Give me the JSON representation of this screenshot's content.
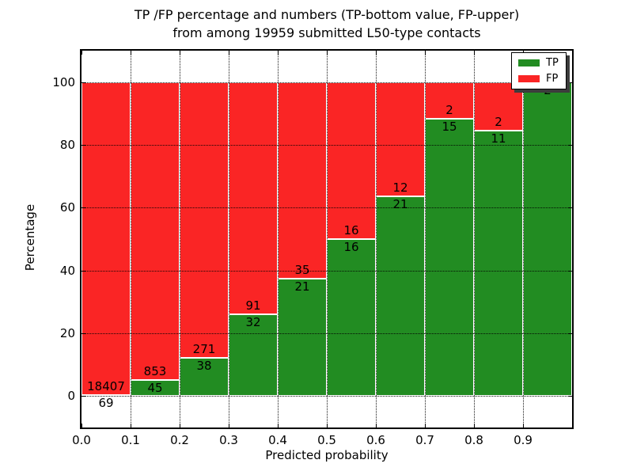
{
  "title": {
    "line1": "TP /FP percentage and numbers (TP-bottom value, FP-upper)",
    "line2": "from among 19959 submitted L50-type contacts"
  },
  "legend": {
    "items": [
      {
        "label": "TP",
        "color": "#228c22"
      },
      {
        "label": "FP",
        "color": "#fa2525"
      }
    ]
  },
  "chart_data": {
    "type": "bar",
    "stacked": true,
    "normalized": "each bin scaled to 100%",
    "title": "TP /FP percentage and numbers (TP-bottom value, FP-upper) from among 19959 submitted L50-type contacts",
    "xlabel": "Predicted probability",
    "ylabel": "Percentage",
    "xlim": [
      0,
      1.0
    ],
    "ylim": [
      -10,
      110
    ],
    "grid": true,
    "legend_position": "upper right",
    "categories": [
      "0.0-0.1",
      "0.1-0.2",
      "0.2-0.3",
      "0.3-0.4",
      "0.4-0.5",
      "0.5-0.6",
      "0.6-0.7",
      "0.7-0.8",
      "0.8-0.9",
      "0.9-1.0"
    ],
    "bin_left_edges": [
      0.0,
      0.1,
      0.2,
      0.3,
      0.4,
      0.5,
      0.6,
      0.7,
      0.8,
      0.9
    ],
    "xticks": [
      "0.0",
      "0.1",
      "0.2",
      "0.3",
      "0.4",
      "0.5",
      "0.6",
      "0.7",
      "0.8",
      "0.9"
    ],
    "yticks": [
      0,
      20,
      40,
      60,
      80,
      100
    ],
    "total_contacts": 19959,
    "series": [
      {
        "name": "TP",
        "color": "#228c22",
        "counts": [
          69,
          45,
          38,
          32,
          21,
          16,
          21,
          15,
          11,
          2
        ],
        "pct": [
          0.37,
          5.01,
          12.3,
          26.02,
          37.5,
          50.0,
          63.64,
          88.24,
          84.62,
          100.0
        ]
      },
      {
        "name": "FP",
        "color": "#fa2525",
        "counts": [
          18407,
          853,
          271,
          91,
          35,
          16,
          12,
          2,
          2,
          0
        ],
        "pct": [
          99.63,
          94.99,
          87.7,
          73.98,
          62.5,
          50.0,
          36.36,
          11.76,
          15.38,
          0.0
        ]
      }
    ],
    "bar_labels": {
      "tp": [
        "69",
        "45",
        "38",
        "32",
        "21",
        "16",
        "21",
        "15",
        "11",
        "2"
      ],
      "fp": [
        "18407",
        "853",
        "271",
        "91",
        "35",
        "16",
        "12",
        "2",
        "2",
        ""
      ]
    }
  }
}
